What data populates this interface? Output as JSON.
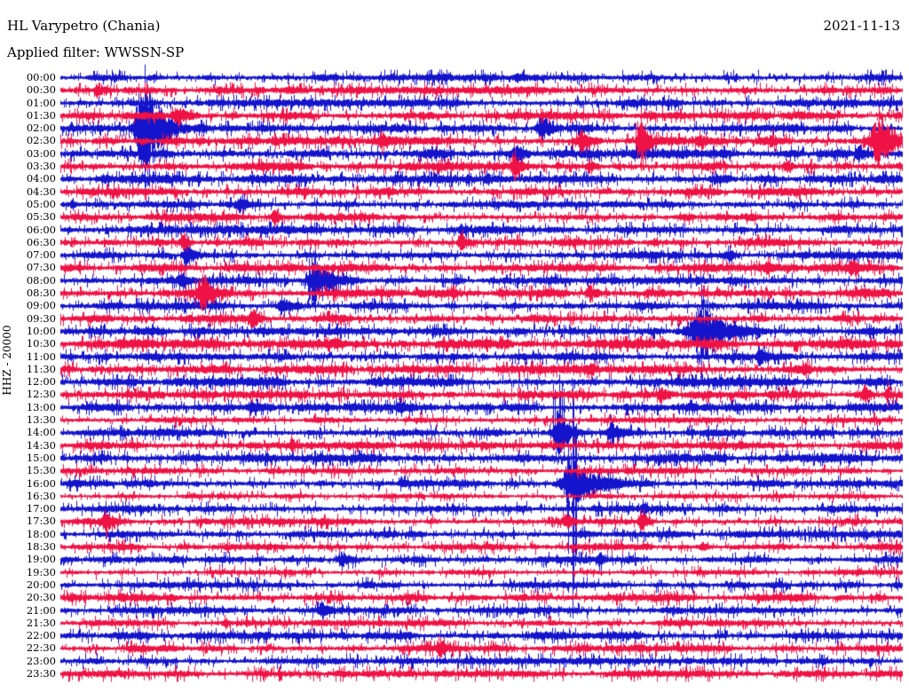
{
  "header": {
    "station": "HL Varypetro (Chania)",
    "filter": "Applied filter: WWSSN-SP",
    "date": "2021-11-13"
  },
  "left_axis": {
    "label": "HHZ - 20000"
  },
  "colors": {
    "blue_trace": "#1414cc",
    "red_trace": "#ef1245",
    "background": "#ffffff",
    "text": "#000000"
  },
  "chart_data": {
    "type": "line",
    "variant": "helicorder-seismogram",
    "title": "HL Varypetro (Chania)",
    "subtitle": "Applied filter: WWSSN-SP",
    "date": "2021-11-13",
    "channel_scale_label": "HHZ - 20000",
    "minutes_per_row": 30,
    "legend_position": "none",
    "grid": false,
    "rows": [
      {
        "label": "00:00",
        "color": "blue",
        "noise": 1.6
      },
      {
        "label": "00:30",
        "color": "red",
        "noise": 1.6
      },
      {
        "label": "01:00",
        "color": "blue",
        "noise": 1.7
      },
      {
        "label": "01:30",
        "color": "red",
        "noise": 1.7
      },
      {
        "label": "02:00",
        "color": "blue",
        "noise": 1.7
      },
      {
        "label": "02:30",
        "color": "red",
        "noise": 1.8
      },
      {
        "label": "03:00",
        "color": "blue",
        "noise": 2.2
      },
      {
        "label": "03:30",
        "color": "red",
        "noise": 1.9
      },
      {
        "label": "04:00",
        "color": "blue",
        "noise": 1.9
      },
      {
        "label": "04:30",
        "color": "red",
        "noise": 1.7
      },
      {
        "label": "05:00",
        "color": "blue",
        "noise": 1.5
      },
      {
        "label": "05:30",
        "color": "red",
        "noise": 1.7
      },
      {
        "label": "06:00",
        "color": "blue",
        "noise": 1.8
      },
      {
        "label": "06:30",
        "color": "red",
        "noise": 1.7
      },
      {
        "label": "07:00",
        "color": "blue",
        "noise": 1.7
      },
      {
        "label": "07:30",
        "color": "red",
        "noise": 1.7
      },
      {
        "label": "08:00",
        "color": "blue",
        "noise": 1.7
      },
      {
        "label": "08:30",
        "color": "red",
        "noise": 1.9
      },
      {
        "label": "09:00",
        "color": "blue",
        "noise": 1.7
      },
      {
        "label": "09:30",
        "color": "red",
        "noise": 1.7
      },
      {
        "label": "10:00",
        "color": "blue",
        "noise": 1.8
      },
      {
        "label": "10:30",
        "color": "red",
        "noise": 2.2
      },
      {
        "label": "11:00",
        "color": "blue",
        "noise": 1.7
      },
      {
        "label": "11:30",
        "color": "red",
        "noise": 1.9
      },
      {
        "label": "12:00",
        "color": "blue",
        "noise": 2.0
      },
      {
        "label": "12:30",
        "color": "red",
        "noise": 1.7
      },
      {
        "label": "13:00",
        "color": "blue",
        "noise": 1.8
      },
      {
        "label": "13:30",
        "color": "red",
        "noise": 1.3
      },
      {
        "label": "14:00",
        "color": "blue",
        "noise": 1.7
      },
      {
        "label": "14:30",
        "color": "red",
        "noise": 1.7
      },
      {
        "label": "15:00",
        "color": "blue",
        "noise": 2.0
      },
      {
        "label": "15:30",
        "color": "red",
        "noise": 1.3
      },
      {
        "label": "16:00",
        "color": "blue",
        "noise": 1.7
      },
      {
        "label": "16:30",
        "color": "red",
        "noise": 1.1
      },
      {
        "label": "17:00",
        "color": "blue",
        "noise": 1.6
      },
      {
        "label": "17:30",
        "color": "red",
        "noise": 1.5
      },
      {
        "label": "18:00",
        "color": "blue",
        "noise": 1.6
      },
      {
        "label": "18:30",
        "color": "red",
        "noise": 1.5
      },
      {
        "label": "19:00",
        "color": "blue",
        "noise": 1.6
      },
      {
        "label": "19:30",
        "color": "red",
        "noise": 1.2
      },
      {
        "label": "20:00",
        "color": "blue",
        "noise": 1.5
      },
      {
        "label": "20:30",
        "color": "red",
        "noise": 1.7
      },
      {
        "label": "21:00",
        "color": "blue",
        "noise": 1.5
      },
      {
        "label": "21:30",
        "color": "red",
        "noise": 1.4
      },
      {
        "label": "22:00",
        "color": "blue",
        "noise": 1.8
      },
      {
        "label": "22:30",
        "color": "red",
        "noise": 1.5
      },
      {
        "label": "23:00",
        "color": "blue",
        "noise": 1.5
      },
      {
        "label": "23:30",
        "color": "red",
        "noise": 1.5
      }
    ],
    "events": [
      {
        "row": "00:00",
        "m": 16.3,
        "a": 4,
        "d": 4
      },
      {
        "row": "00:30",
        "m": 1.33,
        "a": 7,
        "d": 6
      },
      {
        "row": "01:30",
        "m": 4.18,
        "a": 10,
        "d": 8
      },
      {
        "row": "02:00",
        "m": 3.0,
        "a": 55,
        "d": 18,
        "su": 72,
        "sd": 77
      },
      {
        "row": "02:00",
        "m": 17.15,
        "a": 13,
        "d": 10
      },
      {
        "row": "02:30",
        "m": 11.46,
        "a": 8,
        "d": 6
      },
      {
        "row": "02:30",
        "m": 18.58,
        "a": 11,
        "d": 7
      },
      {
        "row": "02:30",
        "m": 20.7,
        "a": 20,
        "d": 9,
        "su": 36,
        "sd": 34
      },
      {
        "row": "02:30",
        "m": 22.78,
        "a": 5,
        "d": 4
      },
      {
        "row": "02:30",
        "m": 25.38,
        "a": 5,
        "d": 4
      },
      {
        "row": "02:30",
        "m": 29.18,
        "a": 26,
        "d": 18,
        "su": 38,
        "sd": 30
      },
      {
        "row": "03:00",
        "m": 16.3,
        "a": 6,
        "d": 5
      },
      {
        "row": "03:00",
        "m": 28.48,
        "a": 7,
        "d": 6
      },
      {
        "row": "03:30",
        "m": 16.2,
        "a": 14,
        "d": 7,
        "su": 19,
        "sd": 16
      },
      {
        "row": "03:30",
        "m": 18.89,
        "a": 6,
        "d": 4
      },
      {
        "row": "03:30",
        "m": 25.92,
        "a": 7,
        "d": 5
      },
      {
        "row": "04:00",
        "m": 15.25,
        "a": 5,
        "d": 4
      },
      {
        "row": "05:00",
        "m": 0.44,
        "a": 4,
        "d": 3
      },
      {
        "row": "05:00",
        "m": 6.39,
        "a": 7,
        "d": 7
      },
      {
        "row": "05:30",
        "m": 7.66,
        "a": 9,
        "d": 5
      },
      {
        "row": "06:00",
        "m": 14.3,
        "a": 4,
        "d": 4
      },
      {
        "row": "06:30",
        "m": 4.4,
        "a": 7,
        "d": 4
      },
      {
        "row": "06:30",
        "m": 14.3,
        "a": 9,
        "d": 6
      },
      {
        "row": "06:30",
        "m": 21.17,
        "a": 4,
        "d": 3
      },
      {
        "row": "07:00",
        "m": 4.49,
        "a": 12,
        "d": 7
      },
      {
        "row": "07:00",
        "m": 23.89,
        "a": 5,
        "d": 4
      },
      {
        "row": "07:30",
        "m": 25.22,
        "a": 5,
        "d": 4
      },
      {
        "row": "07:30",
        "m": 28.23,
        "a": 8,
        "d": 6
      },
      {
        "row": "08:00",
        "m": 4.34,
        "a": 5,
        "d": 4
      },
      {
        "row": "08:00",
        "m": 9.08,
        "a": 24,
        "d": 13,
        "su": 37,
        "sd": 36
      },
      {
        "row": "08:30",
        "m": 5.06,
        "a": 18,
        "d": 9,
        "su": 22,
        "sd": 20
      },
      {
        "row": "08:30",
        "m": 18.89,
        "a": 8,
        "d": 5
      },
      {
        "row": "09:00",
        "m": 7.91,
        "a": 10,
        "d": 7
      },
      {
        "row": "09:30",
        "m": 6.87,
        "a": 9,
        "d": 5
      },
      {
        "row": "10:00",
        "m": 22.85,
        "a": 28,
        "d": 20,
        "su": 54,
        "sd": 53
      },
      {
        "row": "11:00",
        "m": 24.97,
        "a": 8,
        "d": 5
      },
      {
        "row": "11:30",
        "m": 18.95,
        "a": 4,
        "d": 3
      },
      {
        "row": "11:30",
        "m": 26.55,
        "a": 5,
        "d": 3
      },
      {
        "row": "12:30",
        "m": 21.42,
        "a": 8,
        "d": 6
      },
      {
        "row": "12:30",
        "m": 28.7,
        "a": 10,
        "d": 5
      },
      {
        "row": "12:30",
        "m": 29.49,
        "a": 6,
        "d": 3,
        "su": 15,
        "sd": 14
      },
      {
        "row": "13:00",
        "m": 6.8,
        "a": 5,
        "d": 4
      },
      {
        "row": "13:00",
        "m": 12.09,
        "a": 5,
        "d": 9
      },
      {
        "row": "14:00",
        "m": 17.78,
        "a": 26,
        "d": 10,
        "su": 66,
        "sd": 24
      },
      {
        "row": "14:00",
        "m": 19.62,
        "a": 14,
        "d": 7
      },
      {
        "row": "14:30",
        "m": 8.29,
        "a": 5,
        "d": 3
      },
      {
        "row": "16:00",
        "m": 18.26,
        "a": 28,
        "d": 22,
        "su": 115,
        "sd": 152
      },
      {
        "row": "17:00",
        "m": 20.85,
        "a": 5,
        "d": 3
      },
      {
        "row": "17:30",
        "m": 1.64,
        "a": 13,
        "d": 6
      },
      {
        "row": "17:30",
        "m": 18.1,
        "a": 6,
        "d": 3
      },
      {
        "row": "17:30",
        "m": 20.76,
        "a": 8,
        "d": 5
      },
      {
        "row": "18:30",
        "m": 22.94,
        "a": 4,
        "d": 3
      },
      {
        "row": "19:00",
        "m": 10.03,
        "a": 8,
        "d": 6
      },
      {
        "row": "19:00",
        "m": 19.27,
        "a": 5,
        "d": 3
      },
      {
        "row": "20:30",
        "m": 2.2,
        "a": 3,
        "d": 3
      },
      {
        "row": "21:00",
        "m": 9.34,
        "a": 7,
        "d": 5
      },
      {
        "row": "21:30",
        "m": 5.9,
        "a": 4,
        "d": 3
      },
      {
        "row": "22:30",
        "m": 13.57,
        "a": 9,
        "d": 5
      }
    ]
  }
}
